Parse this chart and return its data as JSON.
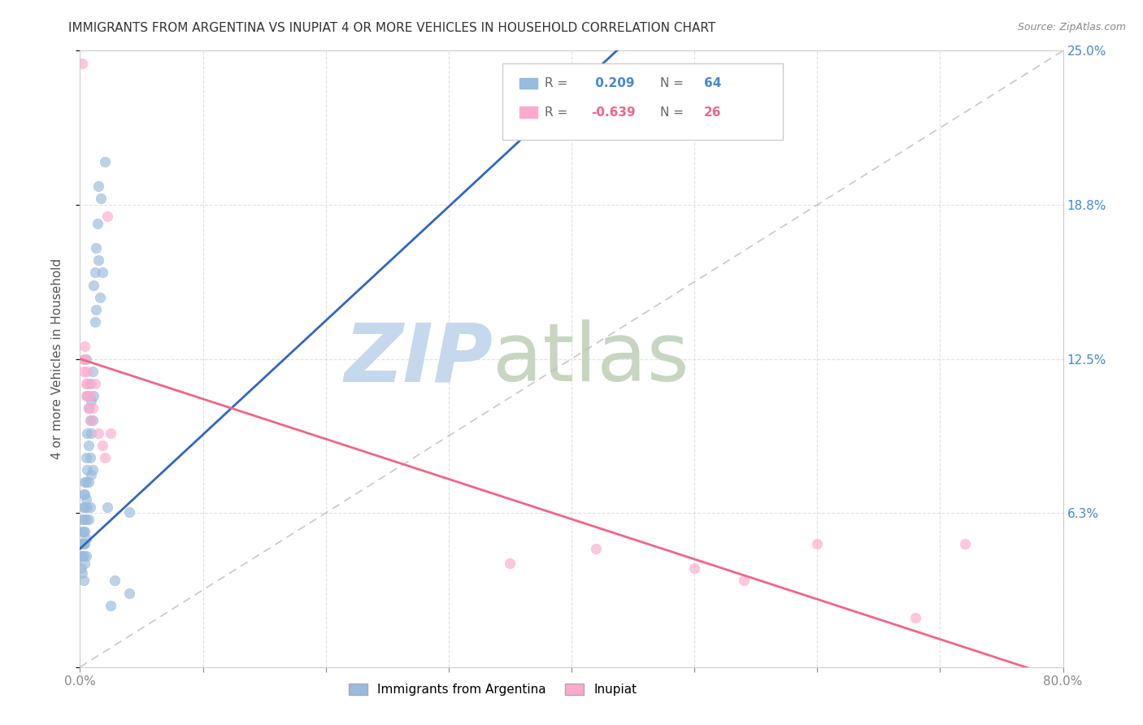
{
  "title": "IMMIGRANTS FROM ARGENTINA VS INUPIAT 4 OR MORE VEHICLES IN HOUSEHOLD CORRELATION CHART",
  "source": "Source: ZipAtlas.com",
  "ylabel": "4 or more Vehicles in Household",
  "xlim": [
    0.0,
    0.8
  ],
  "ylim": [
    0.0,
    0.25
  ],
  "yticks": [
    0.0,
    0.0625,
    0.125,
    0.1875,
    0.25
  ],
  "ytick_labels": [
    "",
    "6.3%",
    "12.5%",
    "18.8%",
    "25.0%"
  ],
  "xticks": [
    0.0,
    0.1,
    0.2,
    0.3,
    0.4,
    0.5,
    0.6,
    0.7,
    0.8
  ],
  "xtick_labels": [
    "0.0%",
    "",
    "",
    "",
    "",
    "",
    "",
    "",
    "80.0%"
  ],
  "legend1_label": "Immigrants from Argentina",
  "legend2_label": "Inupiat",
  "r1": 0.209,
  "n1": 64,
  "r2": -0.639,
  "n2": 26,
  "blue_color": "#99BBDD",
  "pink_color": "#FFAACC",
  "blue_line_color": "#3366BB",
  "pink_line_color": "#EE6688",
  "watermark_zip": "ZIP",
  "watermark_atlas": "atlas",
  "watermark_color_zip": "#C5D8EC",
  "watermark_color_atlas": "#C8D5C0",
  "title_fontsize": 11,
  "blue_scatter_x": [
    0.001,
    0.001,
    0.001,
    0.002,
    0.002,
    0.002,
    0.002,
    0.002,
    0.003,
    0.003,
    0.003,
    0.003,
    0.003,
    0.003,
    0.003,
    0.004,
    0.004,
    0.004,
    0.004,
    0.004,
    0.004,
    0.005,
    0.005,
    0.005,
    0.005,
    0.005,
    0.005,
    0.005,
    0.006,
    0.006,
    0.006,
    0.006,
    0.007,
    0.007,
    0.007,
    0.007,
    0.008,
    0.008,
    0.008,
    0.008,
    0.009,
    0.009,
    0.009,
    0.01,
    0.01,
    0.01,
    0.011,
    0.011,
    0.012,
    0.012,
    0.013,
    0.013,
    0.014,
    0.015,
    0.015,
    0.016,
    0.017,
    0.018,
    0.02,
    0.022,
    0.025,
    0.028,
    0.04,
    0.04
  ],
  "blue_scatter_y": [
    0.05,
    0.045,
    0.04,
    0.06,
    0.055,
    0.05,
    0.045,
    0.038,
    0.07,
    0.065,
    0.06,
    0.055,
    0.05,
    0.045,
    0.035,
    0.075,
    0.07,
    0.065,
    0.055,
    0.05,
    0.042,
    0.125,
    0.085,
    0.075,
    0.068,
    0.06,
    0.052,
    0.045,
    0.11,
    0.095,
    0.08,
    0.065,
    0.105,
    0.09,
    0.075,
    0.06,
    0.115,
    0.1,
    0.085,
    0.065,
    0.108,
    0.095,
    0.078,
    0.12,
    0.1,
    0.08,
    0.155,
    0.11,
    0.16,
    0.14,
    0.17,
    0.145,
    0.18,
    0.195,
    0.165,
    0.15,
    0.19,
    0.16,
    0.205,
    0.065,
    0.025,
    0.035,
    0.063,
    0.03
  ],
  "pink_scatter_x": [
    0.002,
    0.003,
    0.003,
    0.004,
    0.004,
    0.005,
    0.005,
    0.006,
    0.006,
    0.007,
    0.008,
    0.009,
    0.01,
    0.012,
    0.015,
    0.018,
    0.02,
    0.022,
    0.025,
    0.35,
    0.42,
    0.5,
    0.54,
    0.6,
    0.68,
    0.72
  ],
  "pink_scatter_y": [
    0.245,
    0.125,
    0.12,
    0.13,
    0.125,
    0.115,
    0.11,
    0.12,
    0.115,
    0.105,
    0.11,
    0.1,
    0.105,
    0.115,
    0.095,
    0.09,
    0.085,
    0.183,
    0.095,
    0.042,
    0.048,
    0.04,
    0.035,
    0.05,
    0.02,
    0.05
  ],
  "blue_trend_x0": 0.0,
  "blue_trend_y0": 0.048,
  "blue_trend_x1": 0.08,
  "blue_trend_y1": 0.085,
  "pink_trend_x0": 0.0,
  "pink_trend_y0": 0.125,
  "pink_trend_x1": 0.8,
  "pink_trend_y1": -0.005
}
